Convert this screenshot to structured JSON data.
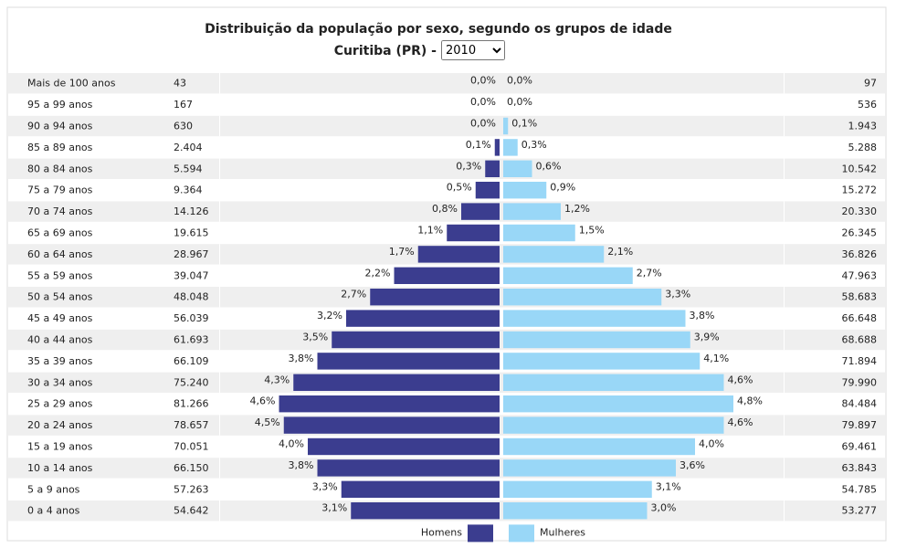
{
  "chart_data": {
    "type": "pyramid",
    "title": "Distribuição da população por sexo, segundo os grupos de idade",
    "subtitle": "Curitiba (PR) -",
    "selected_year": "2010",
    "categories": [
      "Mais de 100 anos",
      "95 a 99 anos",
      "90 a 94 anos",
      "85 a 89 anos",
      "80 a 84 anos",
      "75 a 79 anos",
      "70 a 74 anos",
      "65 a 69 anos",
      "60 a 64 anos",
      "55 a 59 anos",
      "50 a 54 anos",
      "45 a 49 anos",
      "40 a 44 anos",
      "35 a 39 anos",
      "30 a 34 anos",
      "25 a 29 anos",
      "20 a 24 anos",
      "15 a 19 anos",
      "10 a 14 anos",
      "5 a 9 anos",
      "0 a 4 anos"
    ],
    "series": [
      {
        "name": "Homens",
        "color": "#3b3d8f",
        "values": [
          0.0,
          0.0,
          0.0,
          0.1,
          0.3,
          0.5,
          0.8,
          1.1,
          1.7,
          2.2,
          2.7,
          3.2,
          3.5,
          3.8,
          4.3,
          4.6,
          4.5,
          4.0,
          3.8,
          3.3,
          3.1
        ],
        "value_labels": [
          "0,0%",
          "0,0%",
          "0,0%",
          "0,1%",
          "0,3%",
          "0,5%",
          "0,8%",
          "1,1%",
          "1,7%",
          "2,2%",
          "2,7%",
          "3,2%",
          "3,5%",
          "3,8%",
          "4,3%",
          "4,6%",
          "4,5%",
          "4,0%",
          "3,8%",
          "3,3%",
          "3,1%"
        ],
        "counts": [
          "43",
          "167",
          "630",
          "2.404",
          "5.594",
          "9.364",
          "14.126",
          "19.615",
          "28.967",
          "39.047",
          "48.048",
          "56.039",
          "61.693",
          "66.109",
          "75.240",
          "81.266",
          "78.657",
          "70.051",
          "66.150",
          "57.263",
          "54.642"
        ]
      },
      {
        "name": "Mulheres",
        "color": "#99d7f7",
        "values": [
          0.0,
          0.0,
          0.1,
          0.3,
          0.6,
          0.9,
          1.2,
          1.5,
          2.1,
          2.7,
          3.3,
          3.8,
          3.9,
          4.1,
          4.6,
          4.8,
          4.6,
          4.0,
          3.6,
          3.1,
          3.0
        ],
        "value_labels": [
          "0,0%",
          "0,0%",
          "0,1%",
          "0,3%",
          "0,6%",
          "0,9%",
          "1,2%",
          "1,5%",
          "2,1%",
          "2,7%",
          "3,3%",
          "3,8%",
          "3,9%",
          "4,1%",
          "4,6%",
          "4,8%",
          "4,6%",
          "4,0%",
          "3,6%",
          "3,1%",
          "3,0%"
        ],
        "counts": [
          "97",
          "536",
          "1.943",
          "5.288",
          "10.542",
          "15.272",
          "20.330",
          "26.345",
          "36.826",
          "47.963",
          "58.683",
          "66.648",
          "68.688",
          "71.894",
          "79.990",
          "84.484",
          "79.897",
          "69.461",
          "63.843",
          "54.785",
          "53.277"
        ]
      }
    ]
  }
}
